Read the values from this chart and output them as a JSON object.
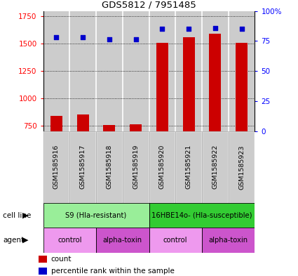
{
  "title": "GDS5812 / 7951485",
  "samples": [
    "GSM1585916",
    "GSM1585917",
    "GSM1585918",
    "GSM1585919",
    "GSM1585920",
    "GSM1585921",
    "GSM1585922",
    "GSM1585923"
  ],
  "bar_values": [
    840,
    850,
    755,
    760,
    1510,
    1560,
    1590,
    1510
  ],
  "dot_values": [
    1560,
    1560,
    1540,
    1540,
    1635,
    1640,
    1645,
    1635
  ],
  "ylim_left": [
    700,
    1800
  ],
  "yticks_left": [
    750,
    1000,
    1250,
    1500,
    1750
  ],
  "ytick_labels_left": [
    "750",
    "1000",
    "1250",
    "1500",
    "1750"
  ],
  "yticks_right": [
    0,
    25,
    50,
    75,
    100
  ],
  "ytick_labels_right": [
    "0",
    "25",
    "50",
    "75",
    "100%"
  ],
  "bar_color": "#cc0000",
  "dot_color": "#0000cc",
  "bg_color": "#cccccc",
  "plot_bg": "#f0f0f0",
  "cell_line_groups": [
    {
      "label": "S9 (Hla-resistant)",
      "start": 0,
      "end": 4,
      "color": "#99ee99"
    },
    {
      "label": "16HBE14o- (Hla-susceptible)",
      "start": 4,
      "end": 8,
      "color": "#33cc33"
    }
  ],
  "agent_groups": [
    {
      "label": "control",
      "start": 0,
      "end": 2,
      "color": "#ee99ee"
    },
    {
      "label": "alpha-toxin",
      "start": 2,
      "end": 4,
      "color": "#cc55cc"
    },
    {
      "label": "control",
      "start": 4,
      "end": 6,
      "color": "#ee99ee"
    },
    {
      "label": "alpha-toxin",
      "start": 6,
      "end": 8,
      "color": "#cc55cc"
    }
  ],
  "legend_items": [
    {
      "label": "count",
      "color": "#cc0000"
    },
    {
      "label": "percentile rank within the sample",
      "color": "#0000cc"
    }
  ]
}
